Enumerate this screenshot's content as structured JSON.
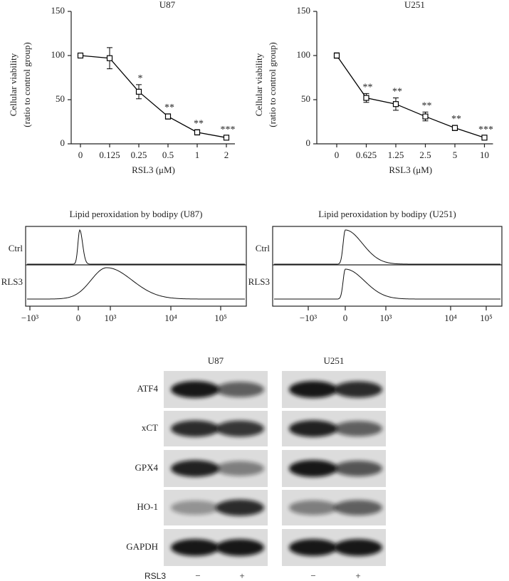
{
  "chart_data": [
    {
      "type": "line",
      "title": "U87",
      "categories": [
        "0",
        "0.125",
        "0.25",
        "0.5",
        "1",
        "2"
      ],
      "values": [
        100,
        97,
        59,
        31,
        13,
        7
      ],
      "errors": [
        0,
        12,
        8,
        3,
        3,
        2
      ],
      "significance": [
        null,
        null,
        "*",
        "**",
        "**",
        "***"
      ],
      "ylim": [
        0,
        150
      ],
      "yticks": [
        0,
        50,
        100,
        150
      ],
      "ylabel": [
        "Cellular viability",
        "(ratio to control group)"
      ],
      "xlabel": "RSL3 (μM)",
      "color": "#000000"
    },
    {
      "type": "line",
      "title": "U251",
      "categories": [
        "0",
        "0.625",
        "1.25",
        "2.5",
        "5",
        "10"
      ],
      "values": [
        100,
        52,
        45,
        31,
        18,
        7
      ],
      "errors": [
        3,
        5,
        7,
        5,
        3,
        2
      ],
      "significance": [
        null,
        "**",
        "**",
        "**",
        "**",
        "***"
      ],
      "ylim": [
        0,
        150
      ],
      "yticks": [
        0,
        50,
        100,
        150
      ],
      "ylabel": [
        "Cellular viability",
        "(ratio to control group)"
      ],
      "xlabel": "RSL3 (μM)",
      "color": "#000000"
    }
  ],
  "flow_panels": [
    {
      "title": "Lipid peroxidation by bodipy (U87)",
      "rows": [
        "Ctrl",
        "RLS3"
      ],
      "xtick_labels": [
        "−10³",
        "0",
        "10³",
        "10⁴",
        "10⁵"
      ]
    },
    {
      "title": "Lipid peroxidation by bodipy (U251)",
      "rows": [
        "Ctrl",
        "RLS3"
      ],
      "xtick_labels": [
        "−10³",
        "0",
        "10³",
        "10⁴",
        "10⁵"
      ]
    }
  ],
  "blot": {
    "columns": [
      "U87",
      "U251"
    ],
    "proteins": [
      "ATF4",
      "xCT",
      "GPX4",
      "HO-1",
      "GAPDH"
    ],
    "treatment": {
      "label": "RSL3",
      "lanes": [
        "−",
        "+",
        "−",
        "+"
      ]
    }
  }
}
